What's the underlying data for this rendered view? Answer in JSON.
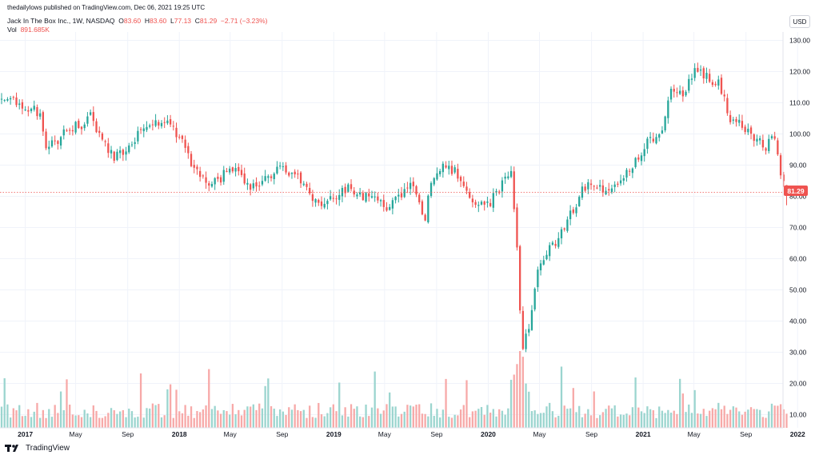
{
  "header": {
    "publisher": "thedailylows published on TradingView.com, Dec 06, 2021 19:25 UTC"
  },
  "legend": {
    "symbol": "Jack In The Box Inc., 1W, NASDAQ",
    "open_label": "O",
    "open": "83.60",
    "high_label": "H",
    "high": "83.60",
    "low_label": "L",
    "low": "77.13",
    "close_label": "C",
    "close": "81.29",
    "change": "−2.71 (−3.23%)",
    "vol_label": "Vol",
    "vol": "891.685K"
  },
  "currency": "USD",
  "last_price": "81.29",
  "footer": {
    "brand": "TradingView"
  },
  "colors": {
    "up": "#26a69a",
    "down": "#ef5350",
    "up_vol": "#9bd5cf",
    "down_vol": "#f7a9a8",
    "grid": "#f0f3fa"
  },
  "chart_data": {
    "type": "candlestick",
    "interval": "1W",
    "ylim": [
      4,
      134
    ],
    "yticks": [
      10,
      20,
      30,
      40,
      50,
      60,
      70,
      80,
      90,
      100,
      110,
      120,
      130
    ],
    "xticks": [
      {
        "label": "2017",
        "date": "2017-01-02"
      },
      {
        "label": "May",
        "date": "2017-05-01"
      },
      {
        "label": "Sep",
        "date": "2017-09-01"
      },
      {
        "label": "2018",
        "date": "2018-01-01"
      },
      {
        "label": "May",
        "date": "2018-05-01"
      },
      {
        "label": "Sep",
        "date": "2018-09-01"
      },
      {
        "label": "2019",
        "date": "2019-01-01"
      },
      {
        "label": "May",
        "date": "2019-05-01"
      },
      {
        "label": "Sep",
        "date": "2019-09-01"
      },
      {
        "label": "2020",
        "date": "2020-01-01"
      },
      {
        "label": "May",
        "date": "2020-05-01"
      },
      {
        "label": "Sep",
        "date": "2020-09-01"
      },
      {
        "label": "2021",
        "date": "2021-01-01"
      },
      {
        "label": "May",
        "date": "2021-05-01"
      },
      {
        "label": "Sep",
        "date": "2021-09-01"
      },
      {
        "label": "2022",
        "date": "2022-01-01"
      }
    ],
    "close_waypoints": [
      [
        "2016-11-07",
        111
      ],
      [
        "2016-12-12",
        110
      ],
      [
        "2017-01-09",
        108
      ],
      [
        "2017-02-06",
        107
      ],
      [
        "2017-02-20",
        95
      ],
      [
        "2017-03-20",
        98
      ],
      [
        "2017-04-17",
        102
      ],
      [
        "2017-05-15",
        103
      ],
      [
        "2017-06-05",
        106
      ],
      [
        "2017-07-03",
        98
      ],
      [
        "2017-07-31",
        93
      ],
      [
        "2017-08-28",
        95
      ],
      [
        "2017-10-02",
        101
      ],
      [
        "2017-11-06",
        103
      ],
      [
        "2017-12-04",
        105
      ],
      [
        "2018-01-08",
        97
      ],
      [
        "2018-02-05",
        88
      ],
      [
        "2018-03-05",
        85
      ],
      [
        "2018-04-02",
        84
      ],
      [
        "2018-04-30",
        90
      ],
      [
        "2018-05-28",
        86
      ],
      [
        "2018-07-02",
        82
      ],
      [
        "2018-07-30",
        86
      ],
      [
        "2018-08-27",
        89
      ],
      [
        "2018-10-08",
        87
      ],
      [
        "2018-11-05",
        80
      ],
      [
        "2018-12-03",
        77
      ],
      [
        "2019-01-07",
        80
      ],
      [
        "2019-02-04",
        83
      ],
      [
        "2019-03-04",
        80
      ],
      [
        "2019-04-01",
        79
      ],
      [
        "2019-05-06",
        77
      ],
      [
        "2019-06-03",
        79
      ],
      [
        "2019-07-01",
        84
      ],
      [
        "2019-08-05",
        73
      ],
      [
        "2019-08-19",
        85
      ],
      [
        "2019-09-16",
        90
      ],
      [
        "2019-10-14",
        88
      ],
      [
        "2019-11-04",
        84
      ],
      [
        "2019-12-02",
        78
      ],
      [
        "2020-01-06",
        78
      ],
      [
        "2020-02-03",
        84
      ],
      [
        "2020-02-24",
        88
      ],
      [
        "2020-03-09",
        65
      ],
      [
        "2020-03-16",
        43
      ],
      [
        "2020-03-23",
        32
      ],
      [
        "2020-04-06",
        38
      ],
      [
        "2020-04-27",
        58
      ],
      [
        "2020-06-01",
        64
      ],
      [
        "2020-07-06",
        72
      ],
      [
        "2020-08-10",
        82
      ],
      [
        "2020-09-07",
        84
      ],
      [
        "2020-10-05",
        82
      ],
      [
        "2020-11-02",
        85
      ],
      [
        "2020-12-07",
        90
      ],
      [
        "2021-01-11",
        97
      ],
      [
        "2021-02-15",
        101
      ],
      [
        "2021-03-08",
        115
      ],
      [
        "2021-04-05",
        113
      ],
      [
        "2021-05-03",
        121
      ],
      [
        "2021-05-31",
        118
      ],
      [
        "2021-06-28",
        116
      ],
      [
        "2021-07-26",
        105
      ],
      [
        "2021-08-23",
        103
      ],
      [
        "2021-09-20",
        99
      ],
      [
        "2021-10-18",
        96
      ],
      [
        "2021-11-08",
        99
      ],
      [
        "2021-11-22",
        86
      ],
      [
        "2021-12-06",
        81.29
      ]
    ],
    "volume_note": "volume in millions; bars colored by candle direction",
    "volume_scale": "same price axis scale (10 ≈ 1M)"
  }
}
